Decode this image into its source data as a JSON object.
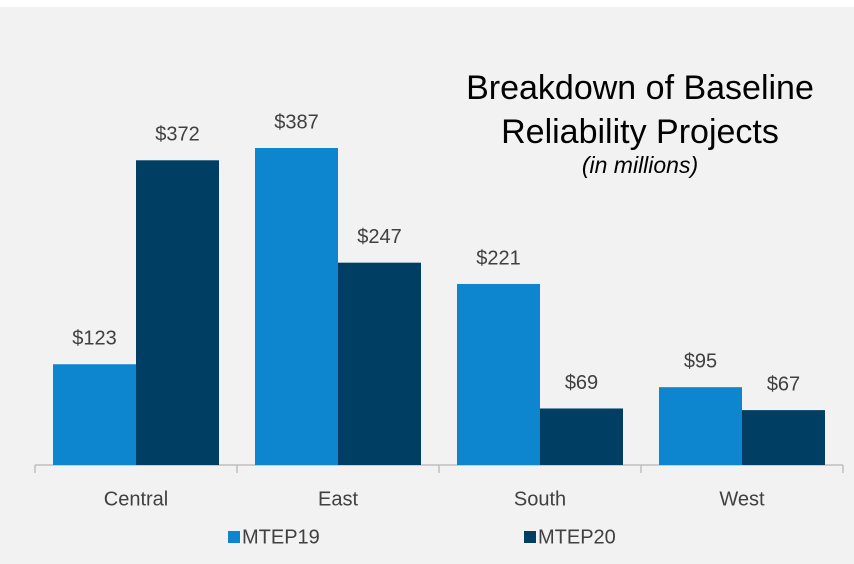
{
  "chart_data": {
    "type": "bar",
    "title": "Breakdown of Baseline Reliability Projects",
    "subtitle": "(in millions)",
    "categories": [
      "Central",
      "East",
      "South",
      "West"
    ],
    "series": [
      {
        "name": "MTEP19",
        "color": "#0e85cf",
        "values": [
          123,
          387,
          221,
          95
        ],
        "value_labels": [
          "$123",
          "$387",
          "$221",
          "$95"
        ]
      },
      {
        "name": "MTEP20",
        "color": "#003f63",
        "values": [
          372,
          247,
          69,
          67
        ],
        "value_labels": [
          "$372",
          "$247",
          "$69",
          "$67"
        ]
      }
    ]
  }
}
